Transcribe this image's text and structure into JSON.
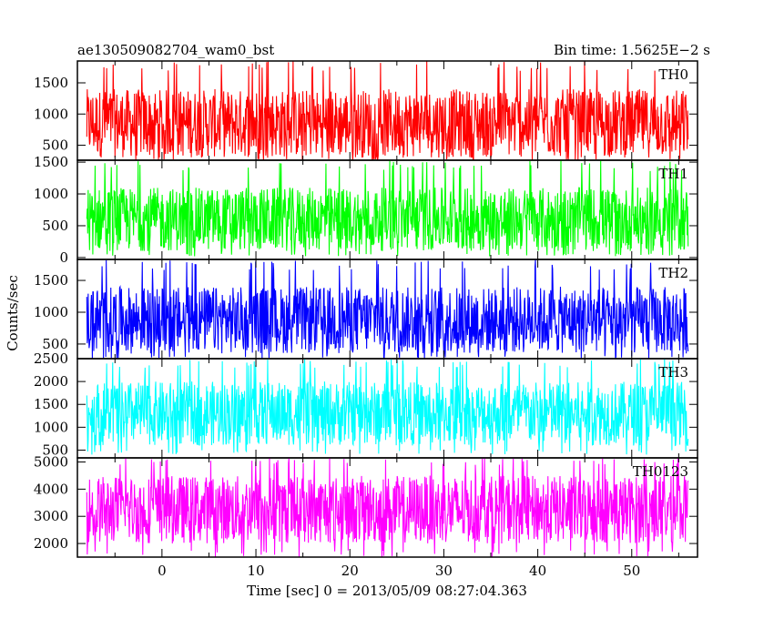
{
  "header": {
    "left_title": "ae130509082704_wam0_bst",
    "right_title": "Bin time: 1.5625E−2 s"
  },
  "chart_data": {
    "type": "line",
    "xlabel": "Time [sec] 0 = 2013/05/09 08:27:04.363",
    "ylabel": "Counts/sec",
    "xlim": [
      -9,
      57
    ],
    "x_data_range": [
      -8,
      56
    ],
    "bin_time_s": 0.015625,
    "x_ticks": [
      0,
      10,
      20,
      30,
      40,
      50
    ],
    "grid": false,
    "panels": [
      {
        "name": "TH0",
        "color": "#ff0000",
        "ylim": [
          260,
          1850
        ],
        "y_ticks": [
          500,
          1000,
          1500
        ],
        "mean": 800,
        "typical_low": 300,
        "typical_high": 1400,
        "min": 260,
        "max": 1850
      },
      {
        "name": "TH1",
        "color": "#00ff00",
        "ylim": [
          -30,
          1530
        ],
        "y_ticks": [
          0,
          500,
          1000,
          1500
        ],
        "mean": 600,
        "typical_low": 100,
        "typical_high": 1100,
        "min": 20,
        "max": 1530
      },
      {
        "name": "TH2",
        "color": "#0000ff",
        "ylim": [
          270,
          1830
        ],
        "y_ticks": [
          500,
          1000,
          1500
        ],
        "mean": 800,
        "typical_low": 350,
        "typical_high": 1400,
        "min": 270,
        "max": 1830
      },
      {
        "name": "TH3",
        "color": "#00ffff",
        "ylim": [
          330,
          2500
        ],
        "y_ticks": [
          500,
          1000,
          1500,
          2000,
          2500
        ],
        "mean": 1300,
        "typical_low": 600,
        "typical_high": 2000,
        "min": 400,
        "max": 2500
      },
      {
        "name": "TH0123",
        "color": "#ff00ff",
        "ylim": [
          1500,
          5150
        ],
        "y_ticks": [
          2000,
          3000,
          4000,
          5000
        ],
        "mean": 3300,
        "typical_low": 2000,
        "typical_high": 4500,
        "min": 1500,
        "max": 5150
      }
    ]
  }
}
